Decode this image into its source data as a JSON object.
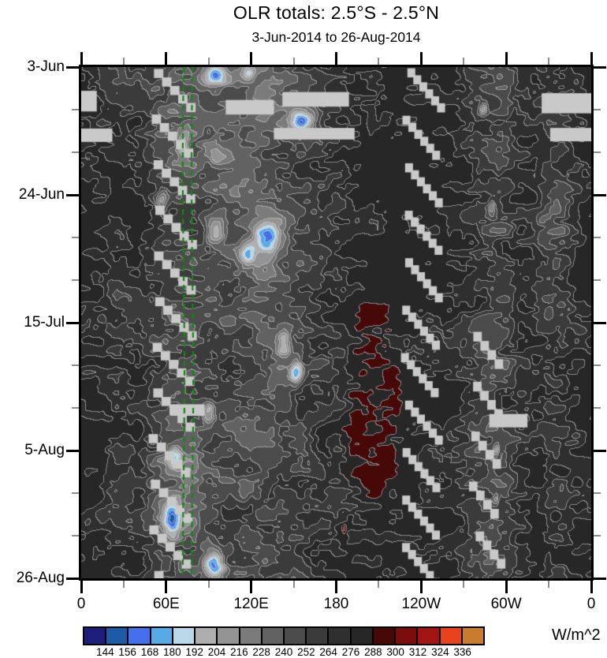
{
  "chart_data": {
    "type": "heatmap",
    "title": "OLR totals: 2.5°S - 2.5°N",
    "subtitle": "3-Jun-2014 to 26-Aug-2014",
    "units": "W/m^2",
    "x_axis": {
      "range": [
        0,
        360
      ],
      "ticks": [
        {
          "lon": 0,
          "label": "0"
        },
        {
          "lon": 60,
          "label": "60E"
        },
        {
          "lon": 120,
          "label": "120E"
        },
        {
          "lon": 180,
          "label": "180"
        },
        {
          "lon": 240,
          "label": "120W"
        },
        {
          "lon": 300,
          "label": "60W"
        },
        {
          "lon": 360,
          "label": "0"
        }
      ],
      "minor_lons": [
        30,
        90,
        150,
        210,
        270,
        330
      ]
    },
    "y_axis": {
      "range_days": [
        0,
        84
      ],
      "ticks": [
        {
          "day": 0,
          "label": "3-Jun"
        },
        {
          "day": 21,
          "label": "24-Jun"
        },
        {
          "day": 42,
          "label": "15-Jul"
        },
        {
          "day": 63,
          "label": "5-Aug"
        },
        {
          "day": 84,
          "label": "26-Aug"
        }
      ],
      "minor_days": [
        7,
        14,
        28,
        35,
        49,
        56,
        70,
        77
      ]
    },
    "colorbar": {
      "levels": [
        144,
        156,
        168,
        180,
        192,
        204,
        216,
        228,
        240,
        252,
        264,
        276,
        288,
        300,
        312,
        324,
        336
      ],
      "colors": [
        "#1d1d7c",
        "#1c5aa5",
        "#4470ec",
        "#58aae6",
        "#b9d9ea",
        "#aeaeae",
        "#949494",
        "#7b7b7b",
        "#626262",
        "#4b4b4b",
        "#3b3b3b",
        "#2f2f2f",
        "#272727",
        "#470808",
        "#7c0d0d",
        "#a31414",
        "#e8431c",
        "#c97c2d"
      ],
      "missing_color": "#c9c9c9"
    },
    "reference_lines": {
      "lons": [
        72.3,
        78.5
      ],
      "color": "#128812",
      "style": "dashed"
    },
    "field": {
      "base_profile_lon_step": 10,
      "base_profile": [
        283,
        279,
        272,
        268,
        270,
        263,
        252,
        247,
        247,
        250,
        251,
        250,
        248,
        250,
        252,
        257,
        263,
        269,
        273,
        277,
        281,
        283,
        284,
        284,
        283,
        283,
        281,
        272,
        261,
        255,
        258,
        272,
        273,
        263,
        268,
        277,
        283
      ],
      "anomalies": [
        {
          "lon": 130,
          "day": 7,
          "rlon": 45,
          "rday": 8,
          "amp": -24
        },
        {
          "lon": 95,
          "day": 2,
          "rlon": 12,
          "rday": 2.5,
          "amp": -30
        },
        {
          "lon": 120,
          "day": 30,
          "rlon": 30,
          "rday": 9,
          "amp": -16
        },
        {
          "lon": 138,
          "day": 47,
          "rlon": 25,
          "rday": 8,
          "amp": -18
        },
        {
          "lon": 72,
          "day": 69,
          "rlon": 22,
          "rday": 10,
          "amp": -16
        },
        {
          "lon": 60,
          "day": 12,
          "rlon": 15,
          "rday": 6,
          "amp": -12
        },
        {
          "lon": 337,
          "day": 25,
          "rlon": 12,
          "rday": 10,
          "amp": -14
        },
        {
          "lon": 205,
          "day": 55,
          "rlon": 25,
          "rday": 20,
          "amp": 10
        },
        {
          "lon": 118,
          "day": 1,
          "rlon": 5,
          "rday": 1.2,
          "amp": -52
        },
        {
          "lon": 95,
          "day": 1,
          "rlon": 6,
          "rday": 1.5,
          "amp": -48
        },
        {
          "lon": 156,
          "day": 9,
          "rlon": 9,
          "rday": 1.8,
          "amp": -85
        },
        {
          "lon": 72,
          "day": 13,
          "rlon": 4,
          "rday": 1.8,
          "amp": -50
        },
        {
          "lon": 100,
          "day": 15,
          "rlon": 8,
          "rday": 1.8,
          "amp": -40
        },
        {
          "lon": 57,
          "day": 22,
          "rlon": 4,
          "rday": 2,
          "amp": -42
        },
        {
          "lon": 95,
          "day": 27,
          "rlon": 6,
          "rday": 2.2,
          "amp": -60
        },
        {
          "lon": 131,
          "day": 28,
          "rlon": 9,
          "rday": 3,
          "amp": -72
        },
        {
          "lon": 118,
          "day": 31,
          "rlon": 5,
          "rday": 1.8,
          "amp": -45
        },
        {
          "lon": 143,
          "day": 45,
          "rlon": 5,
          "rday": 2.2,
          "amp": -55
        },
        {
          "lon": 152,
          "day": 50,
          "rlon": 4,
          "rday": 2.2,
          "amp": -70
        },
        {
          "lon": 90,
          "day": 57,
          "rlon": 5,
          "rday": 1.8,
          "amp": -48
        },
        {
          "lon": 66,
          "day": 64,
          "rlon": 5,
          "rday": 2,
          "amp": -55
        },
        {
          "lon": 64,
          "day": 74,
          "rlon": 6,
          "rday": 2.8,
          "amp": -72
        },
        {
          "lon": 94,
          "day": 82,
          "rlon": 7,
          "rday": 2.3,
          "amp": -85
        },
        {
          "lon": 284,
          "day": 7,
          "rlon": 2.5,
          "rday": 1,
          "amp": -42
        },
        {
          "lon": 290,
          "day": 23,
          "rlon": 2.5,
          "rday": 1.3,
          "amp": -38
        },
        {
          "lon": 293,
          "day": 63,
          "rlon": 2,
          "rday": 1,
          "amp": -35
        },
        {
          "lon": 293,
          "day": 71,
          "rlon": 2,
          "rday": 1,
          "amp": -32
        },
        {
          "lon": 186,
          "day": 76,
          "rlon": 1.5,
          "rday": 0.8,
          "amp": 22
        }
      ],
      "texture_amp": 32
    },
    "missing_data": {
      "bars": [
        {
          "lon0": 102,
          "lon1": 136,
          "day0": 5.4,
          "day1": 7.8
        },
        {
          "lon0": 142,
          "lon1": 189,
          "day0": 4.1,
          "day1": 6.5
        },
        {
          "lon0": 136,
          "lon1": 193,
          "day0": 10.0,
          "day1": 11.9
        },
        {
          "lon0": 0,
          "lon1": 11,
          "day0": 3.9,
          "day1": 7.3
        },
        {
          "lon0": 0,
          "lon1": 22,
          "day0": 10.1,
          "day1": 12.3
        },
        {
          "lon0": 325,
          "lon1": 360,
          "day0": 4.3,
          "day1": 7.6
        },
        {
          "lon0": 331,
          "lon1": 360,
          "day0": 10.0,
          "day1": 12.2
        },
        {
          "lon0": 63,
          "lon1": 87,
          "day0": 55.4,
          "day1": 57.3
        },
        {
          "lon0": 288,
          "lon1": 315,
          "day0": 57.0,
          "day1": 59.2
        }
      ],
      "staircase_columns": [
        {
          "lon0": 50,
          "day0": 0.3,
          "chains": 12,
          "period": 7.5,
          "steps": 5,
          "dlon": 5.7,
          "dday": 1.4,
          "w": 6.6,
          "h": 1.5
        },
        {
          "lon0": 228,
          "day0": 0.2,
          "chains": 11,
          "period": 7.8,
          "steps": 6,
          "dlon": 4.2,
          "dday": 1.15,
          "w": 5.6,
          "h": 1.5
        },
        {
          "lon0": 276,
          "day0": 43.5,
          "chains": 5,
          "period": 8.2,
          "steps": 4,
          "dlon": 5.0,
          "dday": 1.5,
          "w": 6.0,
          "h": 1.6
        }
      ]
    }
  }
}
